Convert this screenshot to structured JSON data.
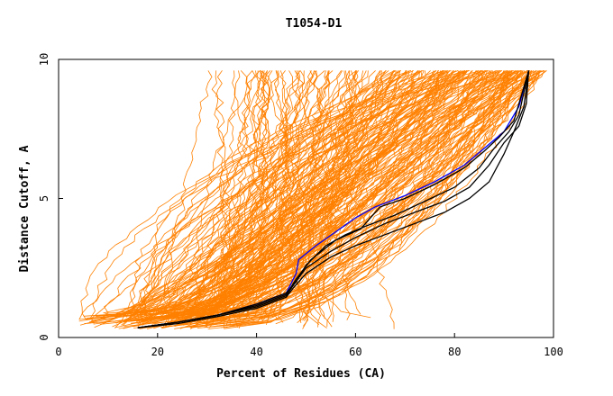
{
  "chart_data": {
    "type": "line",
    "title": "T1054-D1",
    "xlabel": "Percent of Residues (CA)",
    "ylabel": "Distance Cutoff, A",
    "xlim": [
      0,
      100
    ],
    "ylim": [
      0,
      10
    ],
    "x_ticks": [
      "0",
      "20",
      "40",
      "60",
      "80",
      "100"
    ],
    "y_ticks": [
      "0",
      "5",
      "10"
    ],
    "grid": false,
    "colors": {
      "bulk": "#ff8000",
      "highlight_dark": "#000000",
      "highlight_blue": "#0000ff",
      "axes": "#000000"
    },
    "series": [
      {
        "color": "#0000ff",
        "points": [
          [
            16,
            0.35
          ],
          [
            24,
            0.55
          ],
          [
            32,
            0.8
          ],
          [
            40,
            1.2
          ],
          [
            46,
            1.6
          ],
          [
            48,
            2.3
          ],
          [
            48.5,
            2.8
          ],
          [
            52,
            3.3
          ],
          [
            56,
            3.8
          ],
          [
            60,
            4.3
          ],
          [
            64,
            4.7
          ],
          [
            70,
            5.1
          ],
          [
            76,
            5.6
          ],
          [
            82,
            6.2
          ],
          [
            86,
            6.8
          ],
          [
            90,
            7.4
          ],
          [
            93,
            8.3
          ],
          [
            95,
            9.6
          ]
        ]
      },
      {
        "color": "#000000",
        "points": [
          [
            16,
            0.35
          ],
          [
            24,
            0.55
          ],
          [
            32,
            0.8
          ],
          [
            40,
            1.2
          ],
          [
            46,
            1.6
          ],
          [
            48,
            2.0
          ],
          [
            50,
            2.6
          ],
          [
            54,
            3.3
          ],
          [
            58,
            3.7
          ],
          [
            62,
            4.0
          ],
          [
            68,
            4.4
          ],
          [
            74,
            4.9
          ],
          [
            80,
            5.4
          ],
          [
            85,
            6.1
          ],
          [
            88,
            6.8
          ],
          [
            91,
            7.4
          ],
          [
            93,
            8.0
          ],
          [
            95,
            9.6
          ]
        ]
      },
      {
        "color": "#000000",
        "points": [
          [
            16,
            0.35
          ],
          [
            24,
            0.55
          ],
          [
            32,
            0.8
          ],
          [
            40,
            1.1
          ],
          [
            46,
            1.5
          ],
          [
            47.5,
            1.9
          ],
          [
            50,
            2.5
          ],
          [
            55,
            3.1
          ],
          [
            60,
            3.6
          ],
          [
            66,
            4.1
          ],
          [
            72,
            4.5
          ],
          [
            78,
            4.9
          ],
          [
            83,
            5.4
          ],
          [
            87,
            6.2
          ],
          [
            90,
            7.0
          ],
          [
            93,
            7.6
          ],
          [
            94.5,
            8.4
          ],
          [
            95,
            9.6
          ]
        ]
      },
      {
        "color": "#000000",
        "points": [
          [
            16,
            0.35
          ],
          [
            24,
            0.5
          ],
          [
            32,
            0.75
          ],
          [
            40,
            1.05
          ],
          [
            46,
            1.45
          ],
          [
            47.5,
            1.8
          ],
          [
            50,
            2.3
          ],
          [
            55,
            2.9
          ],
          [
            60,
            3.3
          ],
          [
            66,
            3.7
          ],
          [
            72,
            4.1
          ],
          [
            78,
            4.5
          ],
          [
            83,
            5.0
          ],
          [
            87,
            5.6
          ],
          [
            90,
            6.6
          ],
          [
            92,
            7.4
          ],
          [
            94,
            8.3
          ],
          [
            95,
            9.6
          ]
        ]
      },
      {
        "color": "#000000",
        "points": [
          [
            16,
            0.35
          ],
          [
            24,
            0.55
          ],
          [
            32,
            0.8
          ],
          [
            40,
            1.15
          ],
          [
            46,
            1.55
          ],
          [
            48,
            2.1
          ],
          [
            51,
            2.8
          ],
          [
            56,
            3.5
          ],
          [
            61,
            3.9
          ],
          [
            63,
            4.3
          ],
          [
            65,
            4.7
          ],
          [
            70,
            5.0
          ],
          [
            76,
            5.5
          ],
          [
            82,
            6.1
          ],
          [
            86,
            6.7
          ],
          [
            89,
            7.2
          ],
          [
            92,
            7.8
          ],
          [
            95,
            9.6
          ]
        ]
      }
    ]
  }
}
